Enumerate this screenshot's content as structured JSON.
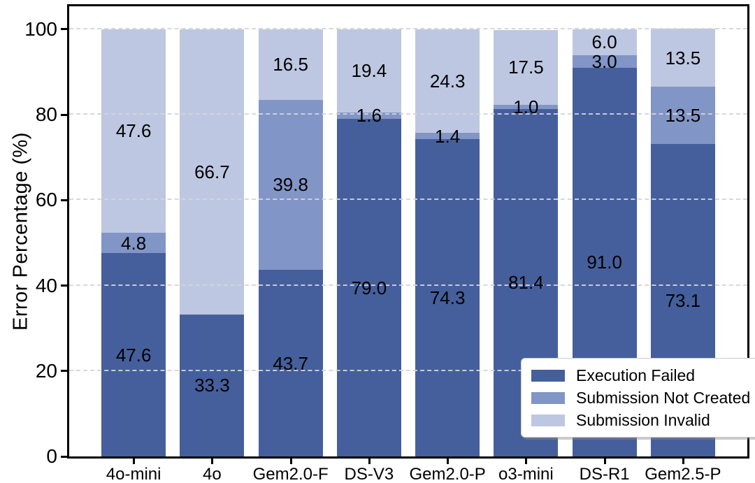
{
  "chart_data": {
    "type": "bar",
    "stacked": true,
    "title": "",
    "xlabel": "",
    "ylabel": "Error Percentage (%)",
    "categories": [
      "4o-mini",
      "4o",
      "Gem2.0-F",
      "DS-V3",
      "Gem2.0-P",
      "o3-mini",
      "DS-R1",
      "Gem2.5-P"
    ],
    "series": [
      {
        "name": "Execution Failed",
        "color": "#455F9C",
        "values": [
          47.6,
          33.3,
          43.7,
          79.0,
          74.3,
          81.4,
          91.0,
          73.1
        ]
      },
      {
        "name": "Submission Not Created",
        "color": "#8295C7",
        "values": [
          4.8,
          0,
          39.8,
          1.6,
          1.4,
          1.0,
          3.0,
          13.5
        ]
      },
      {
        "name": "Submission Invalid",
        "color": "#BEC7E1",
        "values": [
          47.6,
          66.7,
          16.5,
          19.4,
          24.3,
          17.5,
          6.0,
          13.5
        ]
      }
    ],
    "bar_value_label_format": "one-decimal",
    "yticks": [
      0,
      20,
      40,
      60,
      80,
      100
    ],
    "ylim": [
      0,
      105.4
    ],
    "grid": "dashed-horizontal",
    "legend": {
      "position": "lower-right-inset",
      "entries": [
        "Execution Failed",
        "Submission Not Created",
        "Submission Invalid"
      ]
    },
    "colors": {
      "axis": "#000000",
      "gridline": "#d5d5d5",
      "background": "#ffffff",
      "text": "#000000"
    }
  }
}
